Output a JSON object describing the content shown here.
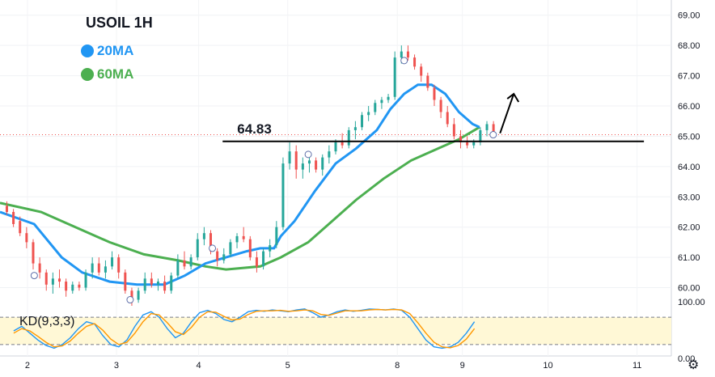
{
  "legend": {
    "title": "USOIL 1H",
    "ma20_label": "20MA",
    "ma60_label": "60MA",
    "ma20_color": "#2196f3",
    "ma60_color": "#4caf50"
  },
  "indicator_label": "KD(9,3,3)",
  "icons": {
    "settings": "gear-icon"
  },
  "chart_data": [
    {
      "type": "candlestick",
      "title": "USOIL 1H",
      "x_ticks": [
        "2",
        "3",
        "4",
        "5",
        "8",
        "9",
        "10",
        "11"
      ],
      "y_ticks": [
        "69.00",
        "68.00",
        "67.00",
        "66.00",
        "65.00",
        "64.00",
        "63.00",
        "62.00",
        "61.00",
        "60.00"
      ],
      "ylim": [
        59.4,
        69.5
      ],
      "xlim": [
        0,
        98
      ],
      "x_tick_positions": [
        4,
        17,
        29,
        42,
        58,
        67.5,
        80,
        93
      ],
      "colors": {
        "up": "#26a69a",
        "down": "#ef5350"
      },
      "candles": [
        {
          "o": 62.7,
          "h": 62.85,
          "l": 62.4,
          "c": 62.5
        },
        {
          "o": 62.5,
          "h": 62.6,
          "l": 62.0,
          "c": 62.1
        },
        {
          "o": 62.2,
          "h": 62.35,
          "l": 61.7,
          "c": 61.8
        },
        {
          "o": 61.8,
          "h": 62.0,
          "l": 61.3,
          "c": 61.5
        },
        {
          "o": 61.5,
          "h": 61.6,
          "l": 60.6,
          "c": 60.8
        },
        {
          "o": 60.8,
          "h": 61.0,
          "l": 60.3,
          "c": 60.5
        },
        {
          "o": 60.5,
          "h": 60.6,
          "l": 59.9,
          "c": 60.1
        },
        {
          "o": 60.1,
          "h": 60.5,
          "l": 59.8,
          "c": 60.3
        },
        {
          "o": 60.3,
          "h": 60.6,
          "l": 60.0,
          "c": 60.2
        },
        {
          "o": 60.2,
          "h": 60.3,
          "l": 59.7,
          "c": 59.9
        },
        {
          "o": 59.9,
          "h": 60.2,
          "l": 59.8,
          "c": 60.1
        },
        {
          "o": 60.1,
          "h": 60.2,
          "l": 59.9,
          "c": 60.0
        },
        {
          "o": 60.0,
          "h": 60.6,
          "l": 59.9,
          "c": 60.5
        },
        {
          "o": 60.5,
          "h": 61.0,
          "l": 60.3,
          "c": 60.8
        },
        {
          "o": 60.8,
          "h": 61.0,
          "l": 60.4,
          "c": 60.5
        },
        {
          "o": 60.5,
          "h": 60.9,
          "l": 60.3,
          "c": 60.7
        },
        {
          "o": 60.7,
          "h": 61.2,
          "l": 60.6,
          "c": 61.0
        },
        {
          "o": 61.0,
          "h": 61.1,
          "l": 60.3,
          "c": 60.5
        },
        {
          "o": 60.5,
          "h": 60.6,
          "l": 59.8,
          "c": 59.9
        },
        {
          "o": 59.9,
          "h": 60.0,
          "l": 59.4,
          "c": 59.6
        },
        {
          "o": 59.6,
          "h": 60.0,
          "l": 59.5,
          "c": 59.9
        },
        {
          "o": 59.9,
          "h": 60.5,
          "l": 59.8,
          "c": 60.3
        },
        {
          "o": 60.3,
          "h": 60.5,
          "l": 60.0,
          "c": 60.1
        },
        {
          "o": 60.1,
          "h": 60.3,
          "l": 59.9,
          "c": 60.2
        },
        {
          "o": 60.2,
          "h": 60.4,
          "l": 59.8,
          "c": 59.9
        },
        {
          "o": 59.9,
          "h": 60.5,
          "l": 59.8,
          "c": 60.4
        },
        {
          "o": 60.4,
          "h": 61.1,
          "l": 60.3,
          "c": 60.9
        },
        {
          "o": 60.9,
          "h": 61.2,
          "l": 60.6,
          "c": 60.7
        },
        {
          "o": 60.7,
          "h": 61.1,
          "l": 60.6,
          "c": 61.0
        },
        {
          "o": 61.0,
          "h": 61.8,
          "l": 60.9,
          "c": 61.6
        },
        {
          "o": 61.6,
          "h": 62.0,
          "l": 61.4,
          "c": 61.8
        },
        {
          "o": 61.8,
          "h": 61.9,
          "l": 61.1,
          "c": 61.2
        },
        {
          "o": 61.2,
          "h": 61.3,
          "l": 60.7,
          "c": 60.9
        },
        {
          "o": 60.9,
          "h": 61.3,
          "l": 60.8,
          "c": 61.1
        },
        {
          "o": 61.1,
          "h": 61.6,
          "l": 61.0,
          "c": 61.5
        },
        {
          "o": 61.5,
          "h": 61.8,
          "l": 61.3,
          "c": 61.7
        },
        {
          "o": 61.7,
          "h": 62.0,
          "l": 61.5,
          "c": 61.6
        },
        {
          "o": 61.6,
          "h": 61.7,
          "l": 60.9,
          "c": 61.0
        },
        {
          "o": 61.0,
          "h": 61.2,
          "l": 60.5,
          "c": 60.7
        },
        {
          "o": 60.7,
          "h": 61.3,
          "l": 60.6,
          "c": 61.2
        },
        {
          "o": 61.2,
          "h": 61.6,
          "l": 61.0,
          "c": 61.4
        },
        {
          "o": 61.4,
          "h": 62.2,
          "l": 61.3,
          "c": 62.0
        },
        {
          "o": 62.0,
          "h": 64.3,
          "l": 61.9,
          "c": 64.1
        },
        {
          "o": 64.1,
          "h": 64.8,
          "l": 63.9,
          "c": 64.5
        },
        {
          "o": 64.5,
          "h": 64.7,
          "l": 63.6,
          "c": 63.9
        },
        {
          "o": 63.9,
          "h": 64.3,
          "l": 63.6,
          "c": 64.1
        },
        {
          "o": 64.1,
          "h": 64.4,
          "l": 63.8,
          "c": 64.2
        },
        {
          "o": 64.2,
          "h": 64.3,
          "l": 63.8,
          "c": 63.9
        },
        {
          "o": 63.9,
          "h": 64.4,
          "l": 63.7,
          "c": 64.3
        },
        {
          "o": 64.3,
          "h": 64.7,
          "l": 64.1,
          "c": 64.5
        },
        {
          "o": 64.5,
          "h": 64.9,
          "l": 64.4,
          "c": 64.8
        },
        {
          "o": 64.8,
          "h": 65.1,
          "l": 64.6,
          "c": 64.7
        },
        {
          "o": 64.7,
          "h": 65.3,
          "l": 64.6,
          "c": 65.2
        },
        {
          "o": 65.2,
          "h": 65.5,
          "l": 64.9,
          "c": 65.3
        },
        {
          "o": 65.3,
          "h": 65.8,
          "l": 65.2,
          "c": 65.7
        },
        {
          "o": 65.7,
          "h": 66.0,
          "l": 65.5,
          "c": 65.8
        },
        {
          "o": 65.8,
          "h": 66.2,
          "l": 65.7,
          "c": 66.1
        },
        {
          "o": 66.1,
          "h": 66.3,
          "l": 65.9,
          "c": 66.2
        },
        {
          "o": 66.2,
          "h": 66.4,
          "l": 66.1,
          "c": 66.3
        },
        {
          "o": 66.3,
          "h": 67.8,
          "l": 66.2,
          "c": 67.6
        },
        {
          "o": 67.6,
          "h": 68.0,
          "l": 67.4,
          "c": 67.8
        },
        {
          "o": 67.8,
          "h": 68.0,
          "l": 67.5,
          "c": 67.6
        },
        {
          "o": 67.6,
          "h": 67.7,
          "l": 67.2,
          "c": 67.3
        },
        {
          "o": 67.3,
          "h": 67.4,
          "l": 66.8,
          "c": 67.0
        },
        {
          "o": 67.0,
          "h": 67.1,
          "l": 66.5,
          "c": 66.6
        },
        {
          "o": 66.6,
          "h": 66.7,
          "l": 66.0,
          "c": 66.2
        },
        {
          "o": 66.2,
          "h": 66.3,
          "l": 65.6,
          "c": 65.8
        },
        {
          "o": 65.8,
          "h": 66.0,
          "l": 65.3,
          "c": 65.4
        },
        {
          "o": 65.4,
          "h": 65.6,
          "l": 64.9,
          "c": 65.0
        },
        {
          "o": 65.0,
          "h": 65.2,
          "l": 64.6,
          "c": 64.8
        },
        {
          "o": 64.8,
          "h": 65.0,
          "l": 64.6,
          "c": 64.7
        },
        {
          "o": 64.7,
          "h": 64.9,
          "l": 64.6,
          "c": 64.8
        },
        {
          "o": 64.8,
          "h": 65.3,
          "l": 64.7,
          "c": 65.2
        },
        {
          "o": 65.2,
          "h": 65.5,
          "l": 65.0,
          "c": 65.4
        },
        {
          "o": 65.4,
          "h": 65.5,
          "l": 65.0,
          "c": 65.1
        }
      ],
      "ma20": [
        [
          0,
          62.5
        ],
        [
          5,
          62.1
        ],
        [
          9,
          61.0
        ],
        [
          12,
          60.5
        ],
        [
          16,
          60.2
        ],
        [
          20,
          60.1
        ],
        [
          24,
          60.1
        ],
        [
          27,
          60.4
        ],
        [
          30,
          60.8
        ],
        [
          33,
          61.0
        ],
        [
          36,
          61.2
        ],
        [
          38,
          61.3
        ],
        [
          40,
          61.3
        ],
        [
          41,
          61.7
        ],
        [
          43,
          62.2
        ],
        [
          46,
          63.2
        ],
        [
          49,
          64.1
        ],
        [
          52,
          64.6
        ],
        [
          55,
          65.2
        ],
        [
          57,
          65.9
        ],
        [
          59,
          66.4
        ],
        [
          61,
          66.7
        ],
        [
          63,
          66.7
        ],
        [
          65,
          66.4
        ],
        [
          67,
          65.8
        ],
        [
          69,
          65.4
        ],
        [
          70,
          65.3
        ]
      ],
      "ma60": [
        [
          0,
          62.8
        ],
        [
          6,
          62.5
        ],
        [
          11,
          62.0
        ],
        [
          16,
          61.5
        ],
        [
          21,
          61.1
        ],
        [
          26,
          60.9
        ],
        [
          30,
          60.7
        ],
        [
          33,
          60.6
        ],
        [
          38,
          60.7
        ],
        [
          41,
          61.0
        ],
        [
          45,
          61.5
        ],
        [
          48,
          62.1
        ],
        [
          52,
          62.9
        ],
        [
          56,
          63.6
        ],
        [
          60,
          64.2
        ],
        [
          64,
          64.6
        ],
        [
          67,
          64.9
        ],
        [
          70,
          65.3
        ]
      ],
      "hline": {
        "price": 64.83,
        "x_start": 32.5,
        "x_end": 94
      },
      "dotted_level": 65.05,
      "annotation": "64.83",
      "arrow": {
        "from": [
          73,
          65.1
        ],
        "to": [
          75,
          66.4
        ]
      },
      "markers": [
        [
          5,
          60.4
        ],
        [
          19,
          59.6
        ],
        [
          31,
          61.3
        ],
        [
          45,
          64.4
        ],
        [
          59,
          67.5
        ],
        [
          72,
          65.05
        ]
      ]
    },
    {
      "type": "line",
      "title": "KD(9,3,3)",
      "y_ticks": [
        "100.00",
        "0.00"
      ],
      "ylim": [
        -5,
        105
      ],
      "bands": [
        20,
        80
      ],
      "series": [
        {
          "name": "K",
          "color": "#2196f3",
          "values": [
            50,
            60,
            45,
            30,
            18,
            12,
            20,
            35,
            55,
            70,
            65,
            40,
            20,
            15,
            30,
            60,
            85,
            92,
            80,
            55,
            35,
            45,
            70,
            90,
            95,
            88,
            75,
            70,
            80,
            92,
            95,
            93,
            96,
            94,
            92,
            96,
            98,
            90,
            80,
            85,
            92,
            96,
            93,
            95,
            98,
            97,
            96,
            98,
            95,
            80,
            55,
            30,
            15,
            12,
            15,
            25,
            45,
            70
          ]
        },
        {
          "name": "D",
          "color": "#ff9800",
          "values": [
            45,
            55,
            50,
            38,
            25,
            15,
            17,
            28,
            45,
            60,
            66,
            52,
            32,
            20,
            25,
            45,
            70,
            88,
            85,
            68,
            48,
            42,
            58,
            80,
            92,
            91,
            82,
            74,
            76,
            86,
            93,
            94,
            94,
            95,
            93,
            94,
            96,
            94,
            86,
            84,
            89,
            94,
            94,
            94,
            96,
            97,
            96,
            97,
            96,
            88,
            68,
            45,
            25,
            15,
            13,
            18,
            32,
            55
          ]
        }
      ]
    }
  ]
}
